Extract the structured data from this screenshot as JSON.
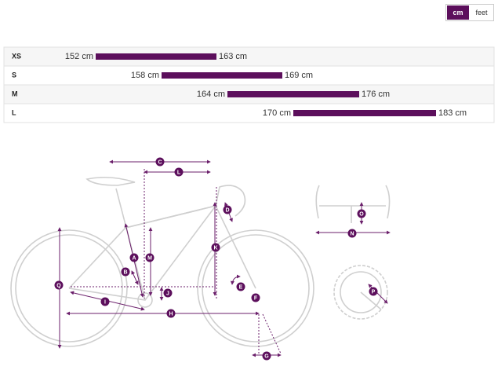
{
  "toggle": {
    "options": [
      "cm",
      "feet"
    ],
    "active_index": 0
  },
  "sizes": [
    {
      "size": "XS",
      "min": 152,
      "max": 163,
      "min_label": "152 cm",
      "max_label": "163 cm"
    },
    {
      "size": "S",
      "min": 158,
      "max": 169,
      "min_label": "158 cm",
      "max_label": "169 cm"
    },
    {
      "size": "M",
      "min": 164,
      "max": 176,
      "min_label": "164 cm",
      "max_label": "176 cm"
    },
    {
      "size": "L",
      "min": 170,
      "max": 183,
      "min_label": "170 cm",
      "max_label": "183 cm"
    }
  ],
  "diagram": {
    "labels": [
      "C",
      "L",
      "D",
      "A",
      "M",
      "K",
      "B",
      "E",
      "J",
      "F",
      "Q",
      "I",
      "H",
      "G",
      "O",
      "N",
      "P"
    ]
  }
}
